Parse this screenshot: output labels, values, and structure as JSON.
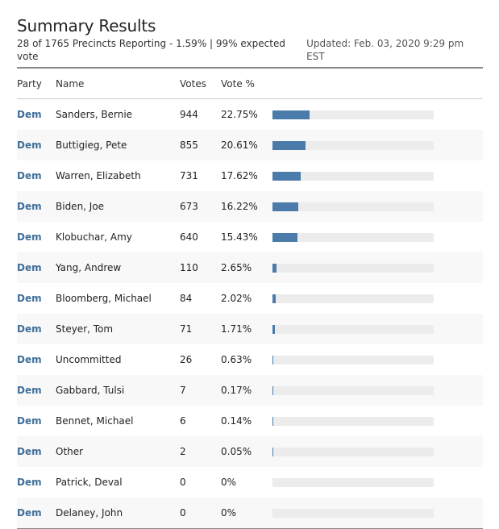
{
  "title": "Summary Results",
  "reporting": "28 of 1765 Precincts Reporting - 1.59% | 99% expected vote",
  "updated": "Updated: Feb. 03, 2020 9:29 pm EST",
  "columns": {
    "party": "Party",
    "name": "Name",
    "votes": "Votes",
    "vote_pct": "Vote %"
  },
  "colors": {
    "party_text": "#3f6f9a",
    "bar_fill": "#4a7bab",
    "bar_track": "#ececec"
  },
  "max_scale_pct": 100,
  "rows": [
    {
      "party": "Dem",
      "name": "Sanders, Bernie",
      "votes": "944",
      "pct": "22.75%",
      "share": 22.75
    },
    {
      "party": "Dem",
      "name": "Buttigieg, Pete",
      "votes": "855",
      "pct": "20.61%",
      "share": 20.61
    },
    {
      "party": "Dem",
      "name": "Warren, Elizabeth",
      "votes": "731",
      "pct": "17.62%",
      "share": 17.62
    },
    {
      "party": "Dem",
      "name": "Biden, Joe",
      "votes": "673",
      "pct": "16.22%",
      "share": 16.22
    },
    {
      "party": "Dem",
      "name": "Klobuchar, Amy",
      "votes": "640",
      "pct": "15.43%",
      "share": 15.43
    },
    {
      "party": "Dem",
      "name": "Yang, Andrew",
      "votes": "110",
      "pct": "2.65%",
      "share": 2.65
    },
    {
      "party": "Dem",
      "name": "Bloomberg, Michael",
      "votes": "84",
      "pct": "2.02%",
      "share": 2.02
    },
    {
      "party": "Dem",
      "name": "Steyer, Tom",
      "votes": "71",
      "pct": "1.71%",
      "share": 1.71
    },
    {
      "party": "Dem",
      "name": "Uncommitted",
      "votes": "26",
      "pct": "0.63%",
      "share": 0.63
    },
    {
      "party": "Dem",
      "name": "Gabbard, Tulsi",
      "votes": "7",
      "pct": "0.17%",
      "share": 0.17
    },
    {
      "party": "Dem",
      "name": "Bennet, Michael",
      "votes": "6",
      "pct": "0.14%",
      "share": 0.14
    },
    {
      "party": "Dem",
      "name": "Other",
      "votes": "2",
      "pct": "0.05%",
      "share": 0.05
    },
    {
      "party": "Dem",
      "name": "Patrick, Deval",
      "votes": "0",
      "pct": "0%",
      "share": 0
    },
    {
      "party": "Dem",
      "name": "Delaney, John",
      "votes": "0",
      "pct": "0%",
      "share": 0
    }
  ]
}
